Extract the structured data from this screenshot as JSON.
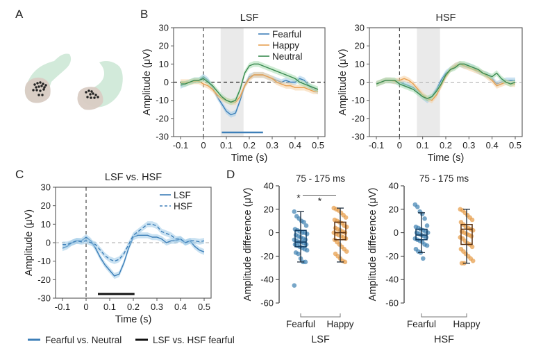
{
  "colors": {
    "fearful": "#3d7fb8",
    "happy": "#e8a050",
    "neutral": "#3a8a50",
    "fearful_band": "#9fcbe8",
    "happy_band": "#f6cfa0",
    "neutral_band": "#a8dcb0",
    "window_shade": "#e6e6e6",
    "sig_bar_lsf": "#3d7fb8",
    "sig_bar_c": "#111111",
    "axis": "#555555",
    "zero_line": "#222222",
    "zero_line_light": "#aaaaaa",
    "dot_fearful": "#3d80b0",
    "dot_happy": "#e69a45",
    "brain_tissue": "#cde8d6",
    "brain_roi": "#d9ccc4",
    "electrode": "#222222"
  },
  "panels": {
    "a": {
      "letter": "A"
    },
    "b": {
      "letter": "B"
    },
    "c": {
      "letter": "C"
    },
    "d": {
      "letter": "D"
    }
  },
  "bottom_legend": {
    "items": [
      {
        "label": "Fearful vs. Neutral",
        "color": "#3d7fb8"
      },
      {
        "label": "LSF vs. HSF fearful",
        "color": "#111111"
      }
    ]
  },
  "chart_data": [
    {
      "id": "b-lsf",
      "type": "line",
      "title": "LSF",
      "xlabel": "Time (s)",
      "ylabel": "Amplitude (μV)",
      "xlim": [
        -0.1,
        0.5
      ],
      "ylim": [
        -30,
        30
      ],
      "xticks": [
        -0.1,
        0,
        0.1,
        0.2,
        0.3,
        0.4,
        0.5
      ],
      "xtick_labels": [
        "-0.1",
        "0",
        "0.1",
        "0.2",
        "0.3",
        "0.4",
        "0.5"
      ],
      "yticks": [
        -30,
        -20,
        -10,
        0,
        10,
        20,
        30
      ],
      "ytick_labels": [
        "-30",
        "-20",
        "-10",
        "0",
        "10",
        "20",
        "30"
      ],
      "shaded_window": [
        0.075,
        0.175
      ],
      "significance_bar": {
        "range": [
          0.08,
          0.26
        ],
        "label": "Fearful vs. Neutral"
      },
      "legend": {
        "position": "top-right",
        "entries": [
          "Fearful",
          "Happy",
          "Neutral"
        ]
      },
      "zero_line_style": "dashed-dark",
      "x": [
        -0.1,
        -0.08,
        -0.06,
        -0.04,
        -0.02,
        0,
        0.02,
        0.04,
        0.06,
        0.08,
        0.1,
        0.12,
        0.14,
        0.16,
        0.18,
        0.2,
        0.22,
        0.24,
        0.26,
        0.28,
        0.3,
        0.32,
        0.34,
        0.36,
        0.38,
        0.4,
        0.42,
        0.44,
        0.46,
        0.48,
        0.5
      ],
      "series": [
        {
          "name": "Fearful",
          "color_key": "fearful",
          "values": [
            -2,
            -1,
            0,
            1,
            1,
            3,
            1,
            -3,
            -8,
            -12,
            -16,
            -18,
            -17,
            -10,
            -2,
            3,
            4,
            4,
            4,
            3,
            2,
            1,
            0,
            1,
            0,
            0,
            2,
            1,
            -2,
            -4,
            -5
          ]
        },
        {
          "name": "Happy",
          "color_key": "happy",
          "values": [
            0,
            0,
            0,
            0.5,
            0.5,
            -1,
            -2,
            -4,
            -7,
            -9,
            -10,
            -11,
            -11,
            -8,
            -2,
            2,
            4,
            4,
            4,
            3,
            2,
            0,
            -1,
            -2,
            -2,
            -3,
            -3,
            -3,
            -4,
            -5,
            -5
          ]
        },
        {
          "name": "Neutral",
          "color_key": "neutral",
          "values": [
            -1,
            -1,
            0,
            1,
            1,
            2,
            0,
            -2,
            -5,
            -8,
            -10,
            -11,
            -10,
            -4,
            5,
            9,
            10,
            10,
            9,
            8,
            7,
            6,
            5,
            4,
            3,
            2,
            0,
            -1,
            -2,
            -3,
            -4
          ]
        }
      ]
    },
    {
      "id": "b-hsf",
      "type": "line",
      "title": "HSF",
      "xlabel": "Time (s)",
      "ylabel": "Amplitude (μV)",
      "xlim": [
        -0.1,
        0.5
      ],
      "ylim": [
        -30,
        30
      ],
      "xticks": [
        -0.1,
        0,
        0.1,
        0.2,
        0.3,
        0.4,
        0.5
      ],
      "xtick_labels": [
        "-0.1",
        "0",
        "0.1",
        "0.2",
        "0.3",
        "0.4",
        "0.5"
      ],
      "yticks": [
        -30,
        -20,
        -10,
        0,
        10,
        20,
        30
      ],
      "ytick_labels": [
        "-30",
        "-20",
        "-10",
        "0",
        "10",
        "20",
        "30"
      ],
      "shaded_window": [
        0.075,
        0.175
      ],
      "zero_line_style": "dashed-light",
      "x": [
        -0.1,
        -0.08,
        -0.06,
        -0.04,
        -0.02,
        0,
        0.02,
        0.04,
        0.06,
        0.08,
        0.1,
        0.12,
        0.14,
        0.16,
        0.18,
        0.2,
        0.22,
        0.24,
        0.26,
        0.28,
        0.3,
        0.32,
        0.34,
        0.36,
        0.38,
        0.4,
        0.42,
        0.44,
        0.46,
        0.48,
        0.5
      ],
      "series": [
        {
          "name": "Fearful",
          "color_key": "fearful",
          "values": [
            -1,
            0,
            1,
            1,
            0.5,
            0,
            -1,
            -2,
            -3,
            -5,
            -8,
            -10,
            -8,
            -4,
            1,
            5,
            7,
            9,
            10,
            9,
            9,
            8,
            6,
            5,
            4,
            2,
            -1,
            0,
            1,
            1,
            1
          ]
        },
        {
          "name": "Happy",
          "color_key": "happy",
          "values": [
            -1,
            0,
            1,
            1,
            0.5,
            1,
            2,
            1,
            -1,
            -4,
            -7,
            -9,
            -10,
            -7,
            -2,
            3,
            7,
            9,
            10,
            9,
            8,
            7,
            6,
            5,
            3,
            1,
            -2,
            -1,
            0,
            -1,
            -1
          ]
        },
        {
          "name": "Neutral",
          "color_key": "neutral",
          "values": [
            -1,
            0,
            1,
            1,
            1,
            -1,
            -2,
            -3,
            -4,
            -6,
            -8,
            -9,
            -8,
            -5,
            -1,
            4,
            7,
            8,
            10,
            10,
            9,
            8,
            7,
            5,
            4,
            3,
            5,
            2,
            0,
            -1,
            0
          ]
        }
      ]
    },
    {
      "id": "c",
      "type": "line",
      "title": "LSF vs. HSF",
      "xlabel": "Time (s)",
      "ylabel": "Amplitude (μV)",
      "xlim": [
        -0.1,
        0.5
      ],
      "ylim": [
        -30,
        30
      ],
      "xticks": [
        -0.1,
        0,
        0.1,
        0.2,
        0.3,
        0.4,
        0.5
      ],
      "xtick_labels": [
        "-0.1",
        "0",
        "0.1",
        "0.2",
        "0.3",
        "0.4",
        "0.5"
      ],
      "yticks": [
        -30,
        -20,
        -10,
        0,
        10,
        20,
        30
      ],
      "ytick_labels": [
        "-30",
        "-20",
        "-10",
        "0",
        "10",
        "20",
        "30"
      ],
      "significance_bar": {
        "range": [
          0.05,
          0.205
        ],
        "label": "LSF vs. HSF fearful"
      },
      "legend": {
        "position": "top-right",
        "entries": [
          "LSF",
          "HSF"
        ]
      },
      "zero_line_style": "dashed-light",
      "x": [
        -0.1,
        -0.08,
        -0.06,
        -0.04,
        -0.02,
        0,
        0.02,
        0.04,
        0.06,
        0.08,
        0.1,
        0.12,
        0.14,
        0.16,
        0.18,
        0.2,
        0.22,
        0.24,
        0.26,
        0.28,
        0.3,
        0.32,
        0.34,
        0.36,
        0.38,
        0.4,
        0.42,
        0.44,
        0.46,
        0.48,
        0.5
      ],
      "series": [
        {
          "name": "LSF",
          "style": "solid",
          "color_key": "fearful",
          "values": [
            -3,
            -2,
            0,
            1,
            1,
            3,
            1,
            -3,
            -8,
            -12,
            -15,
            -18,
            -17,
            -11,
            -3,
            3,
            4,
            4,
            4,
            3,
            3,
            2,
            0,
            1,
            1,
            2,
            0,
            1,
            -2,
            -4,
            -5
          ]
        },
        {
          "name": "HSF",
          "style": "dashed",
          "color_key": "fearful",
          "values": [
            -1,
            -1,
            0,
            1,
            0.5,
            1,
            0,
            -1,
            -4,
            -7,
            -9,
            -10,
            -9,
            -6,
            -1,
            4,
            6,
            8,
            10,
            10,
            9,
            6,
            5,
            4,
            2,
            2,
            0,
            1,
            1,
            0.5,
            1
          ]
        }
      ]
    },
    {
      "id": "d-lsf",
      "type": "box",
      "title": "75 - 175 ms",
      "group_label": "LSF",
      "ylabel": "Amplitude difference (μV)",
      "ylim": [
        -60,
        40
      ],
      "yticks": [
        -60,
        -40,
        -20,
        0,
        20,
        40
      ],
      "ytick_labels": [
        "-60",
        "-40",
        "-20",
        "0",
        "20",
        "40"
      ],
      "categories": [
        "Fearful",
        "Happy"
      ],
      "annotations": [
        {
          "type": "star",
          "text": "*",
          "target": "Fearful"
        },
        {
          "type": "bracket-star",
          "text": "*",
          "between": [
            "Fearful",
            "Happy"
          ]
        }
      ],
      "boxes": [
        {
          "name": "Fearful",
          "color_key": "dot_fearful",
          "whisker_low": -25,
          "q1": -12,
          "median": -8,
          "q3": 2,
          "whisker_high": 18,
          "points": [
            18,
            14,
            12,
            10,
            9,
            6,
            3,
            2,
            1,
            0,
            0,
            -1,
            -2,
            -3,
            -4,
            -5,
            -6,
            -6,
            -7,
            -8,
            -8,
            -9,
            -10,
            -10,
            -11,
            -12,
            -13,
            -14,
            -15,
            -17,
            -18,
            -22,
            -25,
            -25,
            -45
          ]
        },
        {
          "name": "Happy",
          "color_key": "dot_happy",
          "whisker_low": -25,
          "q1": -6,
          "median": 0,
          "q3": 9,
          "whisker_high": 21,
          "points": [
            21,
            20,
            19,
            17,
            15,
            13,
            11,
            10,
            9,
            8,
            6,
            5,
            4,
            3,
            2,
            1,
            0,
            0,
            -1,
            -2,
            -3,
            -4,
            -5,
            -6,
            -8,
            -10,
            -12,
            -14,
            -16,
            -18,
            -20,
            -22,
            -24,
            -25
          ]
        }
      ]
    },
    {
      "id": "d-hsf",
      "type": "box",
      "title": "75 - 175 ms",
      "group_label": "HSF",
      "ylabel": "Amplitude difference (μV)",
      "ylim": [
        -60,
        40
      ],
      "yticks": [
        -60,
        -40,
        -20,
        0,
        20,
        40
      ],
      "ytick_labels": [
        "-60",
        "-40",
        "-20",
        "0",
        "20",
        "40"
      ],
      "categories": [
        "Fearful",
        "Happy"
      ],
      "boxes": [
        {
          "name": "Fearful",
          "color_key": "dot_fearful",
          "whisker_low": -17,
          "q1": -6,
          "median": -2,
          "q3": 3,
          "whisker_high": 17,
          "points": [
            24,
            22,
            18,
            16,
            12,
            6,
            5,
            4,
            3,
            2,
            1,
            0,
            0,
            -1,
            -2,
            -3,
            -4,
            -5,
            -6,
            -7,
            -8,
            -10,
            -11,
            -14,
            -16,
            -17,
            -22
          ]
        },
        {
          "name": "Happy",
          "color_key": "dot_happy",
          "whisker_low": -26,
          "q1": -10,
          "median": 3,
          "q3": 7,
          "whisker_high": 20,
          "points": [
            20,
            19,
            17,
            15,
            13,
            11,
            9,
            7,
            5,
            4,
            3,
            2,
            1,
            0,
            -1,
            -2,
            -3,
            -4,
            -5,
            -7,
            -9,
            -10,
            -12,
            -14,
            -16,
            -18,
            -20,
            -22,
            -24,
            -26,
            -26
          ]
        }
      ]
    }
  ]
}
